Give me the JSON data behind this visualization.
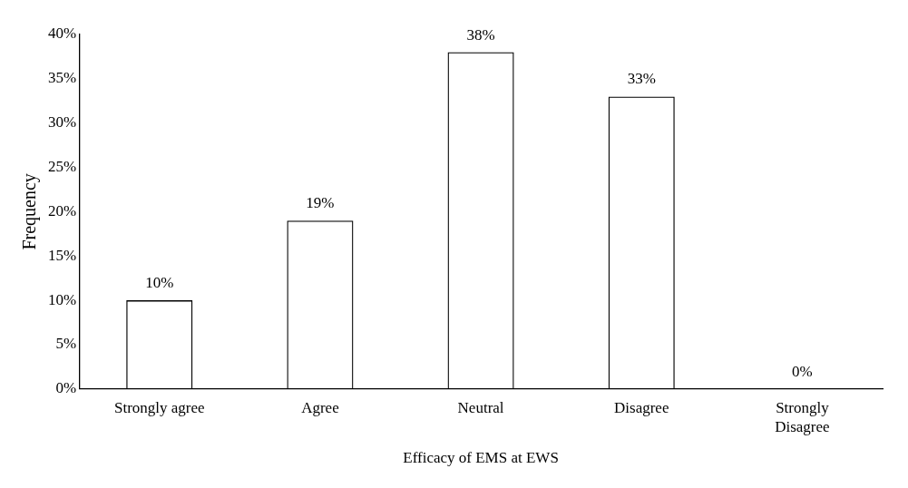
{
  "chart_data": {
    "type": "bar",
    "xlabel": "Efficacy of EMS at EWS",
    "ylabel": "Frequency",
    "categories": [
      "Strongly agree",
      "Agree",
      "Neutral",
      "Disagree",
      "Strongly Disagree"
    ],
    "values": [
      10,
      19,
      38,
      33,
      0
    ],
    "value_labels": [
      "10%",
      "19%",
      "38%",
      "33%",
      "0%"
    ],
    "color": "#000000",
    "ylim": [
      0,
      40
    ],
    "yticks": [
      {
        "value": 0,
        "label": "0%"
      },
      {
        "value": 5,
        "label": "5%"
      },
      {
        "value": 10,
        "label": "10%"
      },
      {
        "value": 15,
        "label": "15%"
      },
      {
        "value": 20,
        "label": "20%"
      },
      {
        "value": 25,
        "label": "25%"
      },
      {
        "value": 30,
        "label": "30%"
      },
      {
        "value": 35,
        "label": "35%"
      },
      {
        "value": 40,
        "label": "40%"
      }
    ],
    "grid": false,
    "legend": false
  }
}
